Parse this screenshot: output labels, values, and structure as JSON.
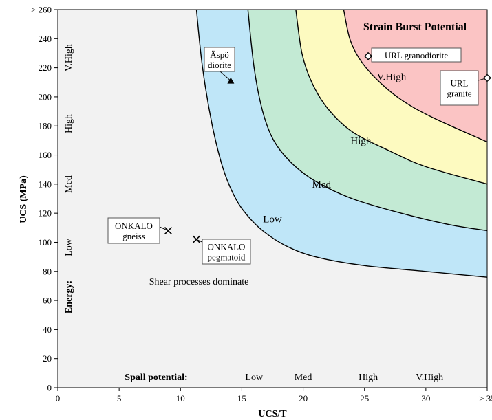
{
  "chart_data": {
    "type": "area",
    "title": "Strain Burst Potential",
    "xlabel": "UCS/T",
    "ylabel": "UCS  (MPa)",
    "xlim": [
      0,
      35
    ],
    "ylim": [
      0,
      260
    ],
    "x_ticks": [
      0,
      5,
      10,
      15,
      20,
      25,
      30,
      35
    ],
    "x_tick_labels": [
      "0",
      "5",
      "10",
      "15",
      "20",
      "25",
      "30",
      "> 35"
    ],
    "y_ticks": [
      0,
      20,
      40,
      60,
      80,
      100,
      120,
      140,
      160,
      180,
      200,
      220,
      240,
      260
    ],
    "y_tick_labels": [
      "0",
      "20",
      "40",
      "60",
      "80",
      "100",
      "120",
      "140",
      "160",
      "180",
      "200",
      "220",
      "240",
      "> 260"
    ],
    "grid": false,
    "background_color": "#f2f2f2",
    "bands": [
      {
        "label": "Low",
        "color": "#bfe6f8",
        "label_at": [
          17.5,
          116
        ],
        "outer": [
          [
            11.3,
            260
          ],
          [
            11.8,
            220
          ],
          [
            12.6,
            180
          ],
          [
            13.5,
            150
          ],
          [
            14.5,
            130
          ],
          [
            15.5,
            118
          ],
          [
            16.7,
            108
          ],
          [
            18.5,
            98
          ],
          [
            21,
            90
          ],
          [
            25,
            84
          ],
          [
            30,
            80
          ],
          [
            35,
            76
          ]
        ]
      },
      {
        "label": "Med",
        "color": "#c3ead4",
        "label_at": [
          21.5,
          140
        ],
        "outer": [
          [
            15.5,
            260
          ],
          [
            16.0,
            220
          ],
          [
            16.7,
            190
          ],
          [
            17.6,
            170
          ],
          [
            19,
            155
          ],
          [
            21,
            142
          ],
          [
            24,
            130
          ],
          [
            28,
            120
          ],
          [
            32,
            112
          ],
          [
            35,
            108
          ]
        ]
      },
      {
        "label": "High",
        "color": "#fdfac0",
        "label_at": [
          24.7,
          170
        ],
        "outer": [
          [
            19.4,
            260
          ],
          [
            19.9,
            230
          ],
          [
            20.7,
            210
          ],
          [
            22,
            192
          ],
          [
            24,
            176
          ],
          [
            27,
            163
          ],
          [
            30,
            152
          ],
          [
            35,
            140
          ]
        ]
      },
      {
        "label": "V.High",
        "color": "#fbc4c4",
        "label_at": [
          27.2,
          214
        ],
        "outer": [
          [
            23.3,
            260
          ],
          [
            23.8,
            240
          ],
          [
            24.6,
            226
          ],
          [
            26,
            212
          ],
          [
            28,
            198
          ],
          [
            30.5,
            186
          ],
          [
            35,
            169
          ]
        ]
      }
    ],
    "points": [
      {
        "name": "Äspö diorite",
        "label_lines": [
          "Äspö",
          "diorite"
        ],
        "x": 14.1,
        "y": 211,
        "marker": "triangle"
      },
      {
        "name": "URL granodiorite",
        "label_lines": [
          "URL granodiorite"
        ],
        "x": 25.3,
        "y": 228,
        "marker": "diamond"
      },
      {
        "name": "URL granite",
        "label_lines": [
          "URL",
          "granite"
        ],
        "x": 35,
        "y": 213,
        "marker": "diamond"
      },
      {
        "name": "ONKALO gneiss",
        "label_lines": [
          "ONKALO",
          "gneiss"
        ],
        "x": 9,
        "y": 108,
        "marker": "x"
      },
      {
        "name": "ONKALO pegmatoid",
        "label_lines": [
          "ONKALO",
          "pegmatoid"
        ],
        "x": 11.3,
        "y": 102,
        "marker": "x"
      }
    ],
    "annotations": {
      "shear_text": "Shear processes dominate",
      "energy_label": "Energy:",
      "energy_levels": [
        "Low",
        "Med",
        "High",
        "V.High"
      ],
      "spall_label": "Spall potential:",
      "spall_levels": [
        "Low",
        "Med",
        "High",
        "V.High"
      ]
    }
  }
}
